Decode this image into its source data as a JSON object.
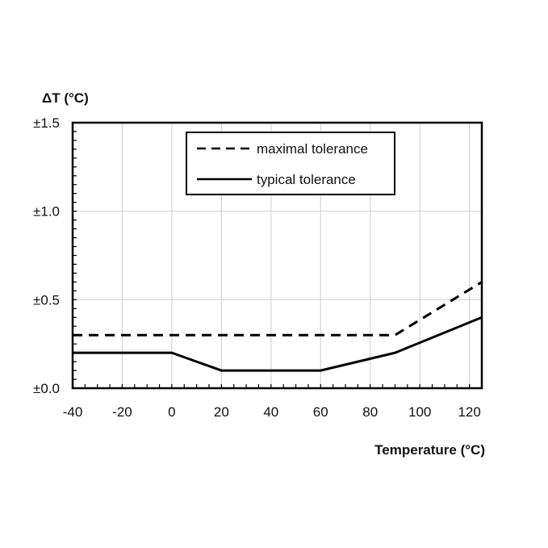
{
  "chart_data": {
    "type": "line",
    "title": "",
    "ylabel": "ΔT (°C)",
    "xlabel": "Temperature (°C)",
    "xlim": [
      -40,
      125
    ],
    "ylim": [
      0,
      1.5
    ],
    "x_ticks": [
      -40,
      -20,
      0,
      20,
      40,
      60,
      80,
      100,
      120
    ],
    "x_tick_labels": [
      "-40",
      "-20",
      "0",
      "20",
      "40",
      "60",
      "80",
      "100",
      "120"
    ],
    "y_ticks": [
      0,
      0.5,
      1.0,
      1.5
    ],
    "y_tick_labels": [
      "±0.0",
      "±0.5",
      "±1.0",
      "±1.5"
    ],
    "grid": true,
    "legend_position": "top-center",
    "series": [
      {
        "name": "maximal tolerance",
        "style": "dashed",
        "color": "#000000",
        "points": [
          [
            -40,
            0.3
          ],
          [
            90,
            0.3
          ],
          [
            125,
            0.6
          ]
        ]
      },
      {
        "name": "typical tolerance",
        "style": "solid",
        "color": "#000000",
        "points": [
          [
            -40,
            0.2
          ],
          [
            0,
            0.2
          ],
          [
            20,
            0.1
          ],
          [
            60,
            0.1
          ],
          [
            90,
            0.2
          ],
          [
            125,
            0.4
          ]
        ]
      }
    ]
  }
}
